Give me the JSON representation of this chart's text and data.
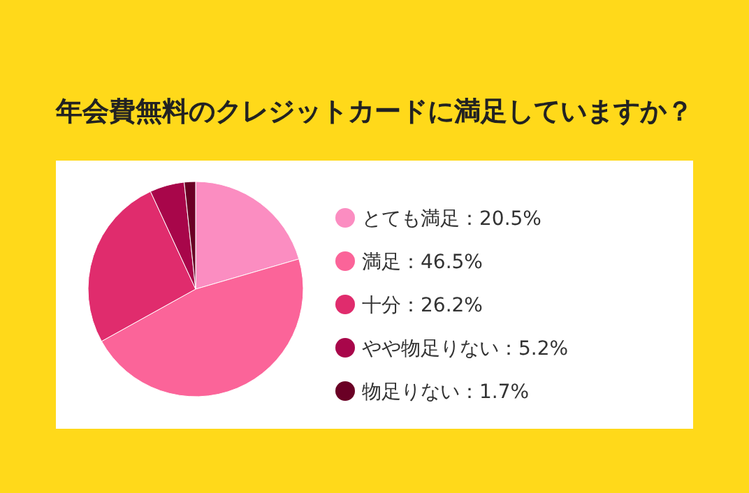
{
  "chart_data": {
    "type": "pie",
    "title": "年会費無料のクレジットカードに満足していますか？",
    "categories": [
      "とても満足",
      "満足",
      "十分",
      "やや物足りない",
      "物足りない"
    ],
    "values": [
      20.5,
      46.5,
      26.2,
      5.2,
      1.7
    ],
    "value_labels": [
      "20.5%",
      "46.5%",
      "26.2%",
      "5.2%",
      "1.7%"
    ],
    "colors": [
      "#fb8dc1",
      "#fb6499",
      "#e02c6d",
      "#a8064a",
      "#6a0025"
    ],
    "legend": "right"
  }
}
